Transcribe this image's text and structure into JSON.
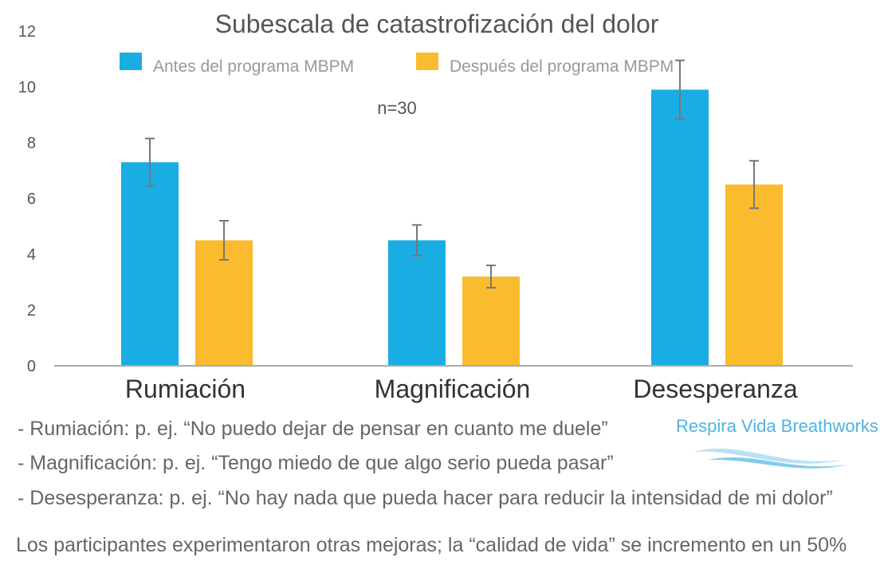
{
  "chart_data": {
    "type": "bar",
    "title": "Subescala de catastrofización del dolor",
    "annotation": "n=30",
    "categories": [
      "Rumiación",
      "Magnificación",
      "Desesperanza"
    ],
    "series": [
      {
        "name": "Antes del programa MBPM",
        "color": "#1AADE3",
        "values": [
          7.3,
          4.5,
          9.9
        ],
        "error": [
          0.85,
          0.55,
          1.05
        ]
      },
      {
        "name": "Después del programa MBPM",
        "color": "#FBBB2E",
        "values": [
          4.5,
          3.2,
          6.5
        ],
        "error": [
          0.7,
          0.4,
          0.85
        ]
      }
    ],
    "yticks": [
      "0",
      "2",
      "4",
      "6",
      "8",
      "10",
      "12"
    ],
    "ylim": [
      0,
      12
    ],
    "xlabel": "",
    "ylabel": "",
    "legend_position": "top"
  },
  "notes": [
    "- Rumiación: p. ej. “No puedo dejar de pensar en cuanto me duele”",
    "- Magnificación: p. ej. “Tengo miedo de que algo serio pueda pasar”",
    "- Desesperanza: p. ej. “No hay nada que pueda hacer para reducir la intensidad de mi dolor”"
  ],
  "summary": "Los participantes experimentaron otras mejoras; la “calidad de vida” se incremento en un 50%",
  "brand": {
    "name": "Respira Vida Breathworks",
    "color": "#4fb3e0"
  }
}
